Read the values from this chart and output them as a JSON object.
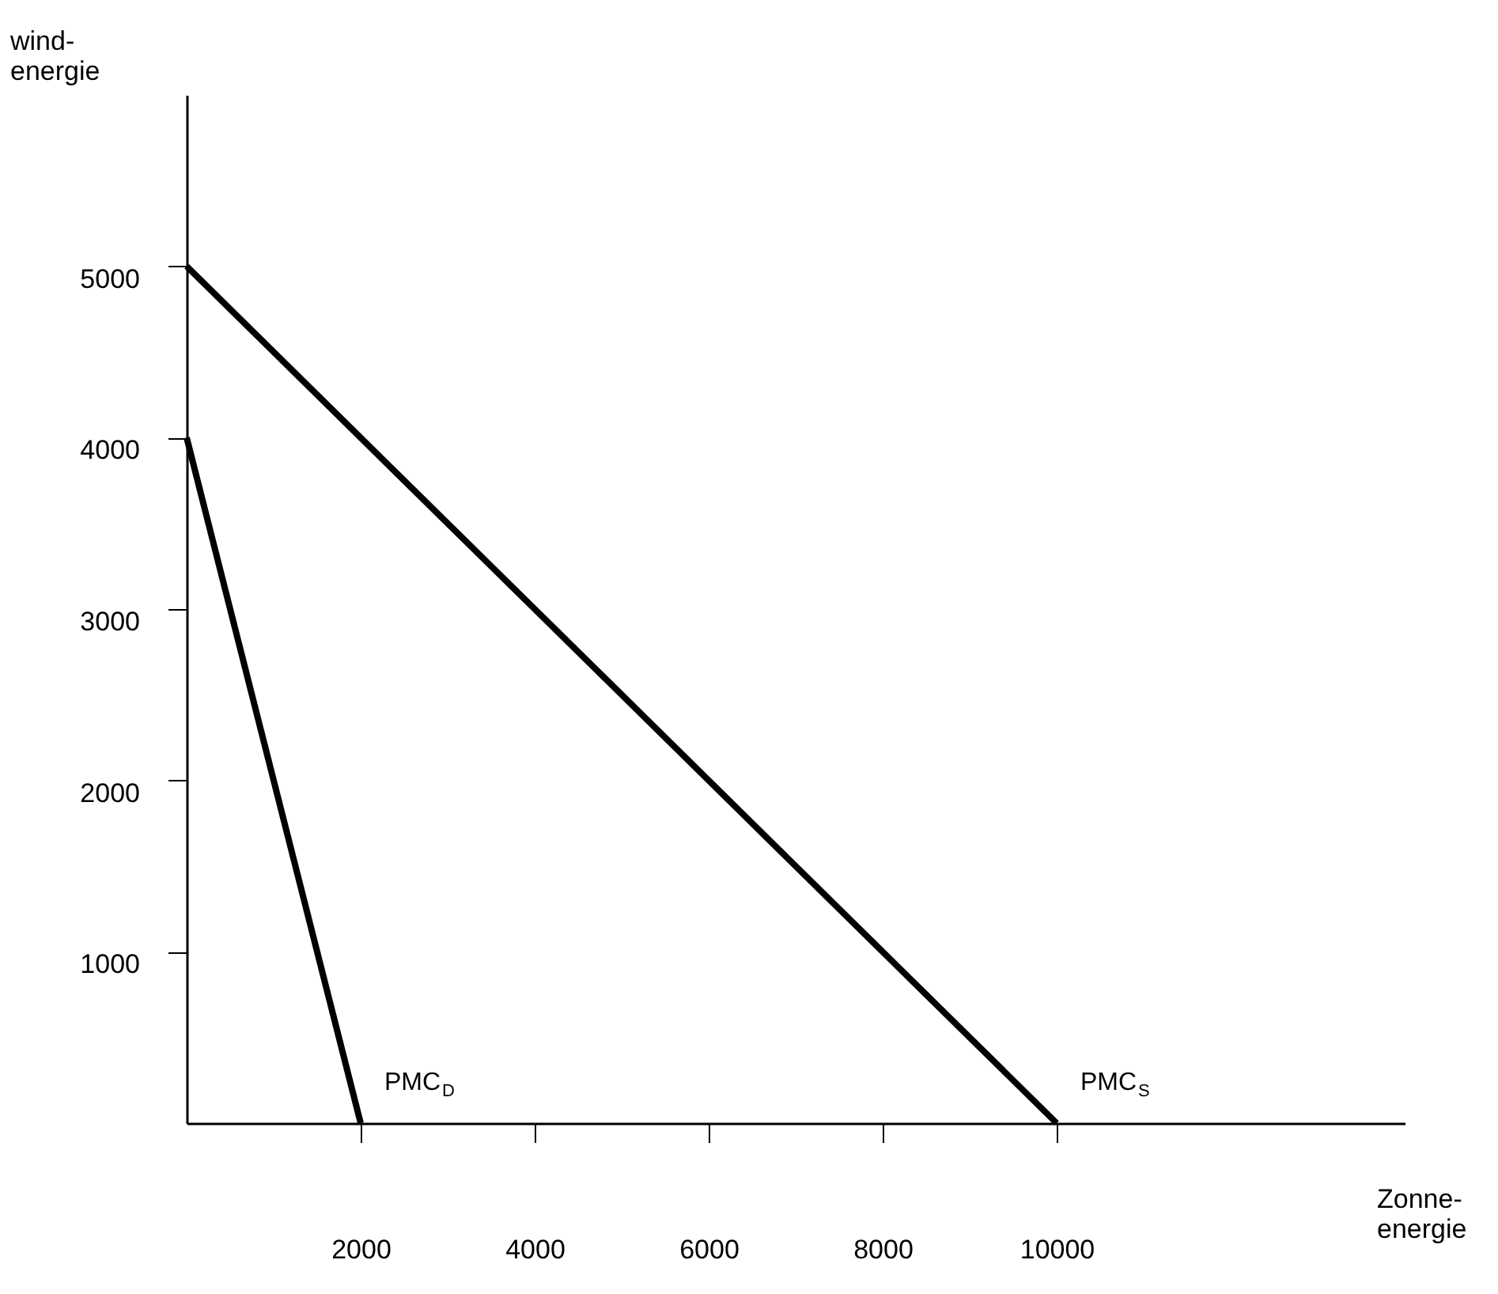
{
  "chart_data": {
    "type": "line",
    "xlabel": "Zonne-\nenergie",
    "ylabel": "wind-\nenergie",
    "xlim": [
      0,
      14000
    ],
    "ylim": [
      0,
      6000
    ],
    "xticks": [
      2000,
      4000,
      6000,
      8000,
      10000
    ],
    "yticks": [
      1000,
      2000,
      3000,
      4000,
      5000
    ],
    "grid": false,
    "marker": "none",
    "line_style": "solid",
    "legend": false,
    "series": [
      {
        "name": "PMC$_{D}$",
        "color": "#000000",
        "x": [
          0,
          2000
        ],
        "values": [
          4000,
          0
        ]
      },
      {
        "name": "PMC$_{S}$",
        "color": "#000000",
        "x": [
          0,
          10000
        ],
        "values": [
          5000,
          0
        ]
      }
    ]
  }
}
